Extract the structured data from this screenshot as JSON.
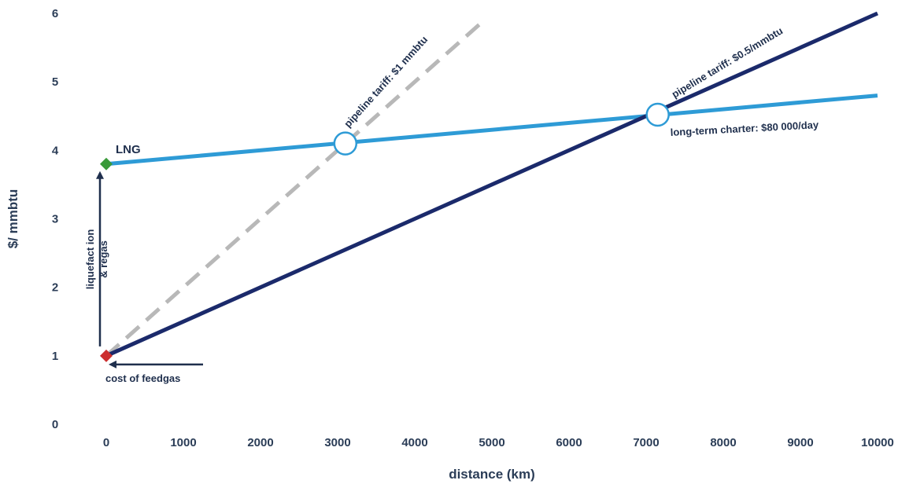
{
  "chart_data": {
    "type": "line",
    "xlabel": "distance (km)",
    "ylabel": "$/ mmbtu",
    "xlim": [
      0,
      10000
    ],
    "ylim": [
      0,
      6
    ],
    "x_ticks": [
      "0",
      "1000",
      "2000",
      "3000",
      "4000",
      "5000",
      "6000",
      "7000",
      "8000",
      "9000",
      "10000"
    ],
    "y_ticks": [
      "0",
      "1",
      "2",
      "3",
      "4",
      "5",
      "6"
    ],
    "grid": false,
    "series": [
      {
        "name": "LNG",
        "x": [
          0,
          10000
        ],
        "y": [
          3.8,
          4.8
        ],
        "color": "#2e9bd6",
        "dashed": false
      },
      {
        "name": "pipeline tariff: $0.5/mmbtu",
        "x": [
          0,
          10000
        ],
        "y": [
          1.0,
          6.0
        ],
        "color": "#1b2a6b",
        "dashed": false
      },
      {
        "name": "pipeline tariff: $1 mmbtu",
        "x": [
          0,
          4900
        ],
        "y": [
          1.0,
          5.9
        ],
        "color": "#b8b8b8",
        "dashed": true
      }
    ],
    "markers": {
      "lng_start": {
        "x": 0,
        "y": 3.8,
        "color": "#3a9a3a"
      },
      "feedgas_start": {
        "x": 0,
        "y": 1.0,
        "color": "#cc2e2e"
      },
      "crossings": [
        {
          "x": 3100,
          "y": 4.1
        },
        {
          "x": 7150,
          "y": 4.52
        }
      ]
    },
    "annotations": {
      "lng": "LNG",
      "liquefaction_line1": "liquefact ion",
      "liquefaction_line2": "& regas",
      "feedgas": "cost of feedgas",
      "pipe_1": "pipeline tariff: $1 mmbtu",
      "pipe_05": "pipeline tariff: $0.5/mmbtu",
      "charter": "long-term charter: $80 000/day"
    }
  }
}
